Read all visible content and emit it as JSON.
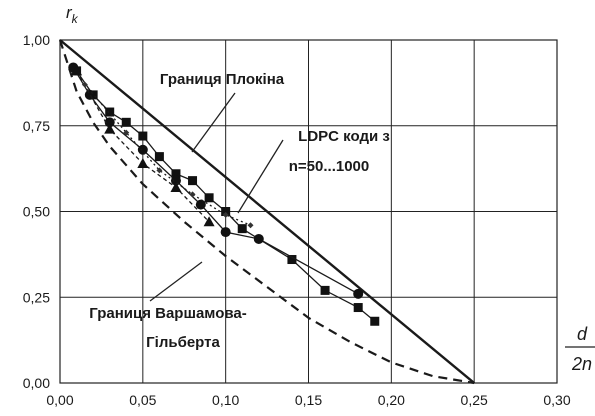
{
  "chart_data": {
    "type": "line",
    "title": "",
    "ylabel": "r_k",
    "xlabel": "d / 2n",
    "xlim": [
      0,
      0.3
    ],
    "ylim": [
      0,
      1
    ],
    "xticks": [
      "0,00",
      "0,05",
      "0,10",
      "0,15",
      "0,20",
      "0,25",
      "0,30"
    ],
    "yticks": [
      "0,00",
      "0,25",
      "0,50",
      "0,75",
      "1,00"
    ],
    "grid": true,
    "annotations": {
      "plotkin": "Границя Плокіна",
      "ldpc_line1": "LDPC коди з",
      "ldpc_line2": "n=50...1000",
      "vg_line1": "Границя Варшамова-",
      "vg_line2": "Гільберта"
    },
    "series": [
      {
        "kind": "bound",
        "style": "solid",
        "x": [
          0,
          0.25
        ],
        "y": [
          1,
          0
        ]
      },
      {
        "kind": "bound",
        "style": "dashed",
        "x": [
          0,
          0.01,
          0.02,
          0.03,
          0.05,
          0.075,
          0.1,
          0.125,
          0.15,
          0.175,
          0.2,
          0.225,
          0.25
        ],
        "y": [
          1,
          0.85,
          0.76,
          0.69,
          0.58,
          0.47,
          0.37,
          0.28,
          0.19,
          0.12,
          0.06,
          0.02,
          0
        ]
      },
      {
        "kind": "ldpc",
        "marker": "square",
        "x": [
          0.01,
          0.02,
          0.03,
          0.04,
          0.05,
          0.06,
          0.07,
          0.08,
          0.09,
          0.1,
          0.11,
          0.14,
          0.16,
          0.18,
          0.19
        ],
        "y": [
          0.91,
          0.84,
          0.79,
          0.76,
          0.72,
          0.66,
          0.61,
          0.59,
          0.54,
          0.5,
          0.45,
          0.36,
          0.27,
          0.22,
          0.18
        ]
      },
      {
        "kind": "ldpc",
        "marker": "circle",
        "x": [
          0.008,
          0.018,
          0.03,
          0.05,
          0.07,
          0.085,
          0.1,
          0.12,
          0.18
        ],
        "y": [
          0.92,
          0.84,
          0.76,
          0.68,
          0.59,
          0.52,
          0.44,
          0.42,
          0.26
        ]
      },
      {
        "kind": "ldpc",
        "marker": "triangle",
        "x": [
          0.01,
          0.03,
          0.05,
          0.07,
          0.09
        ],
        "y": [
          0.91,
          0.74,
          0.64,
          0.57,
          0.47
        ]
      },
      {
        "kind": "ldpc",
        "marker": "diamond",
        "x": [
          0.015,
          0.04,
          0.06,
          0.08,
          0.1,
          0.115
        ],
        "y": [
          0.87,
          0.73,
          0.62,
          0.55,
          0.49,
          0.46
        ]
      }
    ]
  }
}
